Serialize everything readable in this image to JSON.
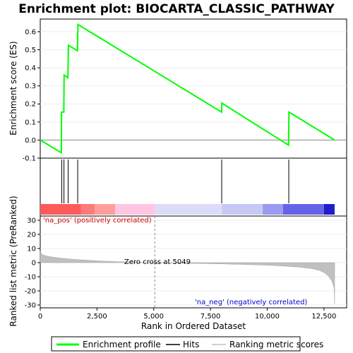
{
  "chart_data": [
    {
      "type": "line",
      "title": "Enrichment plot: BIOCARTA_CLASSIC_PATHWAY",
      "ylabel": "Enrichment score (ES)",
      "xlim": [
        0,
        13500
      ],
      "ylim": [
        -0.1,
        0.67
      ],
      "yticks": [
        -0.1,
        0.0,
        0.1,
        0.2,
        0.3,
        0.4,
        0.5,
        0.6
      ],
      "ytick_labels": [
        "-0.1",
        "0.0",
        "0.1",
        "0.2",
        "0.3",
        "0.4",
        "0.5",
        "0.6"
      ],
      "zero_line": true,
      "series": [
        {
          "name": "Enrichment profile",
          "color": "#00ff00",
          "x": [
            0,
            930,
            940,
            1040,
            1050,
            1220,
            1240,
            1640,
            1660,
            7990,
            8000,
            10940,
            10960,
            12970
          ],
          "y": [
            0.0,
            -0.07,
            0.155,
            0.155,
            0.36,
            0.345,
            0.525,
            0.495,
            0.64,
            0.155,
            0.205,
            -0.028,
            0.155,
            0.0
          ]
        }
      ]
    },
    {
      "type": "hits",
      "hit_positions": [
        950,
        1045,
        1230,
        1650,
        7995,
        10950
      ],
      "hit_color": "#000000",
      "rank_bar_segments": [
        {
          "start": 0,
          "end": 1800,
          "color": "#ff5a5a"
        },
        {
          "start": 1800,
          "end": 2400,
          "color": "#ff7a7a"
        },
        {
          "start": 2400,
          "end": 3300,
          "color": "#ff9d9d"
        },
        {
          "start": 3300,
          "end": 5049,
          "color": "#ffc6e3"
        },
        {
          "start": 5049,
          "end": 8000,
          "color": "#dcdcfa"
        },
        {
          "start": 8000,
          "end": 9800,
          "color": "#c8c8f5"
        },
        {
          "start": 9800,
          "end": 10700,
          "color": "#9a9af0"
        },
        {
          "start": 10700,
          "end": 12500,
          "color": "#6464e8"
        },
        {
          "start": 12500,
          "end": 12970,
          "color": "#1e1ecc"
        }
      ]
    },
    {
      "type": "area",
      "xlabel": "Rank in Ordered Dataset",
      "ylabel": "Ranked list metric (PreRanked)",
      "xlim": [
        0,
        13500
      ],
      "ylim": [
        -32,
        33
      ],
      "xticks": [
        0,
        2500,
        5000,
        7500,
        10000,
        12500
      ],
      "xtick_labels": [
        "0",
        "2,500",
        "5,000",
        "7,500",
        "10,000",
        "12,500"
      ],
      "yticks": [
        -30,
        -20,
        -10,
        0,
        10,
        20,
        30
      ],
      "ytick_labels": [
        "-30",
        "-20",
        "-10",
        "0",
        "10",
        "20",
        "30"
      ],
      "zero_cross": 5049,
      "fill_color": "#c0c0c0",
      "x": [
        0,
        100,
        300,
        600,
        1000,
        1500,
        2000,
        2500,
        3000,
        3500,
        4000,
        4500,
        5049,
        6000,
        7000,
        8000,
        9000,
        10000,
        10500,
        11000,
        11500,
        12000,
        12300,
        12500,
        12700,
        12850,
        12950,
        12970
      ],
      "y": [
        8,
        5.5,
        4.6,
        3.8,
        3.0,
        2.3,
        1.8,
        1.3,
        0.9,
        0.6,
        0.35,
        0.15,
        0,
        -0.3,
        -0.6,
        -0.9,
        -1.3,
        -1.8,
        -2.2,
        -2.7,
        -3.3,
        -4.3,
        -5.5,
        -7.0,
        -9.5,
        -13,
        -18,
        -29
      ],
      "annotations": {
        "pos_label": "'na_pos' (positively correlated)",
        "neg_label": "'na_neg' (negatively correlated)",
        "zero_cross_label": "Zero cross at 5049"
      }
    }
  ],
  "legend": {
    "items": [
      {
        "label": "Enrichment profile",
        "color": "#00ff00"
      },
      {
        "label": "Hits",
        "color": "#000000"
      },
      {
        "label": "Ranking metric scores",
        "color": "#c0c0c0"
      }
    ]
  }
}
